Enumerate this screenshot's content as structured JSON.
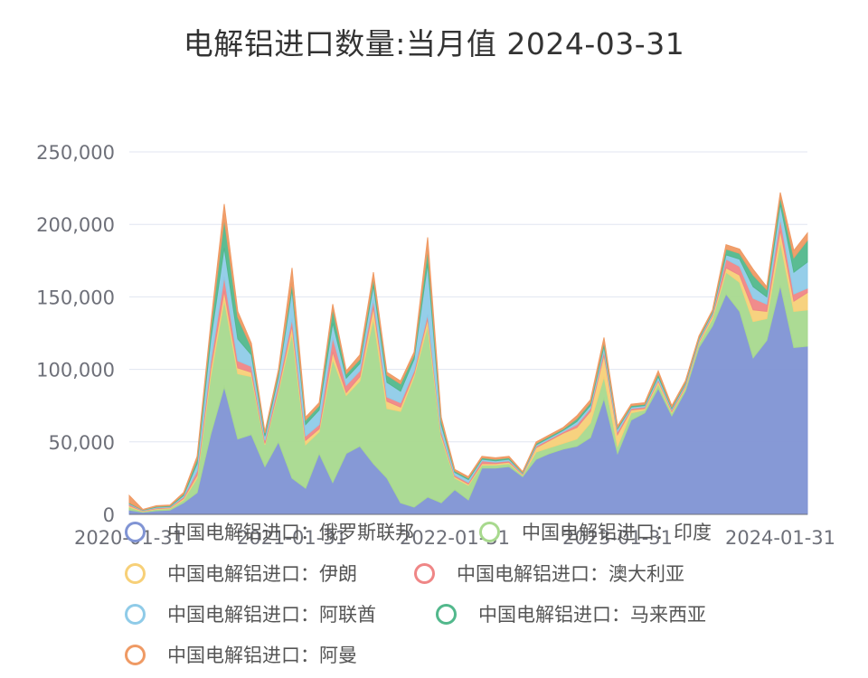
{
  "chart_data": {
    "type": "area",
    "title": "电解铝进口数量:当月值 2024-03-31",
    "xlabel": "",
    "ylabel": "",
    "ylim": [
      0,
      250000
    ],
    "stacked": true,
    "grid": true,
    "legend_position": "bottom",
    "y_ticks": [
      "0",
      "50,000",
      "100,000",
      "150,000",
      "200,000",
      "250,000"
    ],
    "x_ticks": [
      "2020-01-31",
      "2021-01-31",
      "2022-01-31",
      "2023-01-31",
      "2024-01-31"
    ],
    "x": [
      "2020-01",
      "2020-02",
      "2020-03",
      "2020-04",
      "2020-05",
      "2020-06",
      "2020-07",
      "2020-08",
      "2020-09",
      "2020-10",
      "2020-11",
      "2020-12",
      "2021-01",
      "2021-02",
      "2021-03",
      "2021-04",
      "2021-05",
      "2021-06",
      "2021-07",
      "2021-08",
      "2021-09",
      "2021-10",
      "2021-11",
      "2021-12",
      "2022-01",
      "2022-02",
      "2022-03",
      "2022-04",
      "2022-05",
      "2022-06",
      "2022-07",
      "2022-08",
      "2022-09",
      "2022-10",
      "2022-11",
      "2022-12",
      "2023-01",
      "2023-02",
      "2023-03",
      "2023-04",
      "2023-05",
      "2023-06",
      "2023-07",
      "2023-08",
      "2023-09",
      "2023-10",
      "2023-11",
      "2023-12",
      "2024-01",
      "2024-02",
      "2024-03"
    ],
    "series": [
      {
        "name": "中国电解铝进口：俄罗斯联邦",
        "color": "#8094d4",
        "values": [
          3000,
          1500,
          2500,
          3000,
          8000,
          15000,
          55000,
          88000,
          52000,
          55000,
          33000,
          50000,
          25000,
          18000,
          42000,
          22000,
          42000,
          47000,
          35000,
          25000,
          8000,
          5000,
          12000,
          8000,
          17000,
          10000,
          32000,
          32000,
          33000,
          26000,
          38000,
          42000,
          45000,
          47000,
          53000,
          80000,
          42000,
          65000,
          70000,
          87000,
          68000,
          85000,
          115000,
          130000,
          152000,
          140000,
          108000,
          120000,
          158000,
          115000,
          116000
        ]
      },
      {
        "name": "中国电解铝进口：印度",
        "color": "#a8d98e",
        "values": [
          2000,
          500,
          1000,
          1000,
          2000,
          10000,
          40000,
          60000,
          45000,
          40000,
          15000,
          35000,
          100000,
          30000,
          15000,
          85000,
          40000,
          45000,
          100000,
          48000,
          63000,
          90000,
          118000,
          45000,
          8000,
          10000,
          2000,
          2000,
          2000,
          1000,
          5000,
          4000,
          4000,
          5000,
          10000,
          15000,
          5000,
          5000,
          2000,
          3000,
          2000,
          2000,
          3000,
          5000,
          15000,
          20000,
          25000,
          15000,
          30000,
          25000,
          25000
        ]
      },
      {
        "name": "中国电解铝进口：伊朗",
        "color": "#f7d078",
        "values": [
          1000,
          300,
          500,
          500,
          1000,
          2000,
          5000,
          6000,
          4000,
          3000,
          1000,
          2000,
          5000,
          3000,
          2000,
          5000,
          2000,
          3000,
          8000,
          5000,
          3000,
          2000,
          5000,
          2000,
          1000,
          1000,
          1000,
          1000,
          1000,
          500,
          3000,
          5000,
          7000,
          8000,
          8000,
          15000,
          8000,
          2000,
          1000,
          2000,
          1000,
          1000,
          1000,
          2000,
          3000,
          5000,
          8000,
          5000,
          8000,
          7000,
          12000
        ]
      },
      {
        "name": "中国电解铝进口：澳大利亚",
        "color": "#ef8686",
        "values": [
          1000,
          300,
          500,
          500,
          1000,
          3000,
          5000,
          10000,
          5000,
          4000,
          2000,
          3000,
          5000,
          3000,
          3000,
          10000,
          5000,
          4000,
          5000,
          3000,
          3000,
          2000,
          3000,
          2000,
          1000,
          1000,
          2000,
          1000,
          1000,
          500,
          1000,
          1000,
          1000,
          2000,
          2000,
          3000,
          2000,
          1000,
          1000,
          1000,
          1000,
          1000,
          1000,
          1000,
          6000,
          6000,
          8000,
          5000,
          8000,
          5000,
          3000
        ]
      },
      {
        "name": "中国电解铝进口：阿联酋",
        "color": "#8fcbe8",
        "values": [
          500,
          300,
          500,
          500,
          1000,
          5000,
          15000,
          20000,
          15000,
          8000,
          3000,
          5000,
          20000,
          8000,
          10000,
          10000,
          5000,
          5000,
          10000,
          10000,
          8000,
          8000,
          35000,
          5000,
          2000,
          2000,
          1000,
          1000,
          1000,
          500,
          1000,
          1000,
          1000,
          2000,
          2000,
          3000,
          2000,
          1000,
          1000,
          2000,
          1000,
          1000,
          1000,
          1000,
          3000,
          5000,
          8000,
          5000,
          10000,
          15000,
          18000
        ]
      },
      {
        "name": "中国电解铝进口：马来西亚",
        "color": "#52b88c",
        "values": [
          500,
          200,
          500,
          500,
          1000,
          3000,
          8000,
          20000,
          15000,
          5000,
          2000,
          3000,
          5000,
          3000,
          3000,
          10000,
          3000,
          3000,
          5000,
          5000,
          5000,
          3000,
          10000,
          3000,
          1000,
          1000,
          1000,
          1000,
          1000,
          500,
          1000,
          1000,
          1000,
          2000,
          2000,
          3000,
          1000,
          1000,
          1000,
          2000,
          1000,
          1000,
          1000,
          1000,
          4000,
          4000,
          8000,
          5000,
          5000,
          10000,
          15000
        ]
      },
      {
        "name": "中国电解铝进口：阿曼",
        "color": "#ef9a64",
        "values": [
          5000,
          300,
          500,
          500,
          1000,
          2000,
          3000,
          10000,
          4000,
          3000,
          1000,
          2000,
          10000,
          2000,
          2000,
          3000,
          2000,
          3000,
          4000,
          2000,
          2000,
          2000,
          8000,
          2000,
          1000,
          1000,
          1000,
          1000,
          1000,
          500,
          1000,
          1000,
          1000,
          2000,
          2000,
          3000,
          1000,
          1000,
          1000,
          2000,
          1000,
          1000,
          1000,
          1000,
          3000,
          3000,
          4000,
          2000,
          3000,
          5000,
          5000
        ]
      }
    ]
  }
}
